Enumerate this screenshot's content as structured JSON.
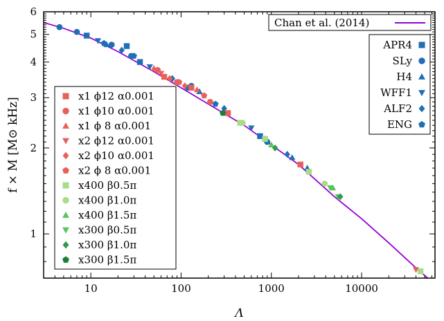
{
  "chart_data": {
    "type": "scatter",
    "title": "",
    "xlabel": "Λ",
    "ylabel": "f × M [M⊙ kHz]",
    "xscale": "log",
    "yscale": "log",
    "xlim": [
      3,
      65000
    ],
    "ylim": [
      0.7,
      6
    ],
    "grid": false,
    "x_ticks": [
      {
        "v": 10,
        "label": "10"
      },
      {
        "v": 100,
        "label": "100"
      },
      {
        "v": 1000,
        "label": "1000"
      },
      {
        "v": 10000,
        "label": "10000"
      }
    ],
    "y_ticks": [
      {
        "v": 1,
        "label": "1"
      },
      {
        "v": 2,
        "label": "2"
      },
      {
        "v": 3,
        "label": "3"
      },
      {
        "v": 4,
        "label": "4"
      },
      {
        "v": 5,
        "label": "5"
      },
      {
        "v": 6,
        "label": "6"
      }
    ],
    "fit": {
      "name": "Chan et al. (2014)",
      "color": "#9400d3",
      "points": [
        [
          3,
          5.5
        ],
        [
          5,
          5.25
        ],
        [
          10,
          4.85
        ],
        [
          20,
          4.35
        ],
        [
          50,
          3.7
        ],
        [
          100,
          3.25
        ],
        [
          200,
          2.85
        ],
        [
          500,
          2.4
        ],
        [
          1000,
          2.05
        ],
        [
          2000,
          1.75
        ],
        [
          5000,
          1.35
        ],
        [
          10000,
          1.13
        ],
        [
          20000,
          0.93
        ],
        [
          40000,
          0.76
        ],
        [
          60000,
          0.68
        ]
      ]
    },
    "legend_eos": {
      "placement": "top-right",
      "entries": [
        "APR4",
        "SLy",
        "H4",
        "WFF1",
        "ALF2",
        "ENG"
      ]
    },
    "legend_sims": {
      "placement": "left",
      "entries": [
        "x1 ϕ12 α0.001",
        "x1 ϕ10 α0.001",
        "x1 ϕ  8 α0.001",
        "x2 ϕ12 α0.001",
        "x2 ϕ10 α0.001",
        "x2 ϕ  8 α0.001",
        "x400 β0.5π",
        "x400 β1.0π",
        "x400 β1.5π",
        "x300 β0.5π",
        "x300 β1.0π",
        "x300 β1.5π"
      ]
    },
    "series": [
      {
        "name": "APR4",
        "group": "eos",
        "marker": "square",
        "color": "#1f6fb5",
        "points": [
          [
            9,
            4.95
          ],
          [
            25,
            4.55
          ],
          [
            35,
            4.0
          ],
          [
            120,
            3.25
          ],
          [
            750,
            2.2
          ]
        ]
      },
      {
        "name": "SLy",
        "group": "eos",
        "marker": "circle",
        "color": "#1f6fb5",
        "points": [
          [
            4.5,
            5.3
          ],
          [
            7,
            5.1
          ],
          [
            17,
            4.6
          ],
          [
            28,
            4.2
          ],
          [
            130,
            3.3
          ],
          [
            900,
            2.1
          ]
        ]
      },
      {
        "name": "H4",
        "group": "eos",
        "marker": "triangle-up",
        "color": "#1f6fb5",
        "points": [
          [
            15,
            4.6
          ],
          [
            55,
            3.75
          ],
          [
            160,
            3.15
          ],
          [
            1700,
            1.85
          ],
          [
            2500,
            1.7
          ]
        ]
      },
      {
        "name": "WFF1",
        "group": "eos",
        "marker": "triangle-down",
        "color": "#1f6fb5",
        "points": [
          [
            12,
            4.75
          ],
          [
            45,
            3.85
          ],
          [
            600,
            2.35
          ]
        ]
      },
      {
        "name": "ALF2",
        "group": "eos",
        "marker": "diamond",
        "color": "#1f6fb5",
        "points": [
          [
            22,
            4.4
          ],
          [
            80,
            3.5
          ],
          [
            300,
            2.75
          ],
          [
            1500,
            1.9
          ]
        ]
      },
      {
        "name": "ENG",
        "group": "eos",
        "marker": "pentagon",
        "color": "#1f6fb5",
        "points": [
          [
            14,
            4.65
          ],
          [
            30,
            4.2
          ],
          [
            240,
            2.85
          ],
          [
            850,
            2.15
          ]
        ]
      },
      {
        "name": "x1 ϕ12 α0.001",
        "group": "sims",
        "marker": "square",
        "color": "#e8605a",
        "points": [
          [
            65,
            3.55
          ],
          [
            130,
            3.25
          ],
          [
            330,
            2.65
          ],
          [
            2100,
            1.75
          ]
        ]
      },
      {
        "name": "x1 ϕ10 α0.001",
        "group": "sims",
        "marker": "circle",
        "color": "#e8605a",
        "points": [
          [
            55,
            3.75
          ],
          [
            210,
            2.9
          ],
          [
            90,
            3.4
          ]
        ]
      },
      {
        "name": "x1 ϕ  8 α0.001",
        "group": "sims",
        "marker": "triangle-up",
        "color": "#e8605a",
        "points": [
          [
            50,
            3.8
          ],
          [
            150,
            3.2
          ]
        ]
      },
      {
        "name": "x2 ϕ12 α0.001",
        "group": "sims",
        "marker": "triangle-down",
        "color": "#e8605a",
        "points": [
          [
            60,
            3.65
          ],
          [
            40000,
            0.75
          ]
        ]
      },
      {
        "name": "x2 ϕ10 α0.001",
        "group": "sims",
        "marker": "diamond",
        "color": "#e8605a",
        "points": [
          [
            75,
            3.5
          ],
          [
            110,
            3.3
          ]
        ]
      },
      {
        "name": "x2 ϕ  8 α0.001",
        "group": "sims",
        "marker": "pentagon",
        "color": "#e8605a",
        "points": [
          [
            95,
            3.4
          ],
          [
            180,
            3.05
          ]
        ]
      },
      {
        "name": "x400 β0.5π",
        "group": "sims",
        "marker": "square",
        "color": "#a6dc8a",
        "points": [
          [
            450,
            2.45
          ],
          [
            850,
            2.15
          ],
          [
            2600,
            1.65
          ],
          [
            45000,
            0.74
          ]
        ]
      },
      {
        "name": "x400 β1.0π",
        "group": "sims",
        "marker": "circle",
        "color": "#a6dc8a",
        "points": [
          [
            480,
            2.45
          ],
          [
            3900,
            1.5
          ]
        ]
      },
      {
        "name": "x400 β1.5π",
        "group": "sims",
        "marker": "triangle-up",
        "color": "#5cc45a",
        "points": [
          [
            1000,
            2.05
          ],
          [
            4800,
            1.45
          ]
        ]
      },
      {
        "name": "x300 β0.5π",
        "group": "sims",
        "marker": "triangle-down",
        "color": "#5cc45a",
        "points": [
          [
            4500,
            1.45
          ],
          [
            5500,
            1.35
          ]
        ]
      },
      {
        "name": "x300 β1.0π",
        "group": "sims",
        "marker": "diamond",
        "color": "#2e9a4a",
        "points": [
          [
            1100,
            2.0
          ],
          [
            5800,
            1.35
          ]
        ]
      },
      {
        "name": "x300 β1.5π",
        "group": "sims",
        "marker": "pentagon",
        "color": "#1f7a3a",
        "points": [
          [
            290,
            2.65
          ]
        ]
      }
    ]
  }
}
